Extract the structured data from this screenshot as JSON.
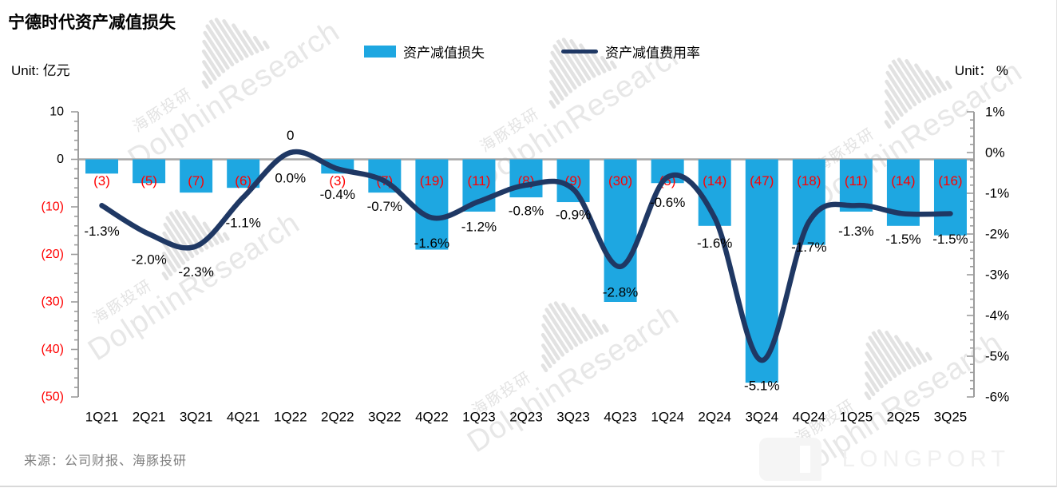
{
  "title": "宁德时代资产减值损失",
  "unit_left": "Unit: 亿元",
  "unit_right": "Unit： %",
  "legend": {
    "bar_label": "资产减值损失",
    "line_label": "资产减值费用率"
  },
  "source": "来源：公司财报、海豚投研",
  "watermark": {
    "en": "DolphinResearch",
    "cn": "海豚投研"
  },
  "footer_logo": "LONGPORT",
  "colors": {
    "bar": "#1ea7e1",
    "line": "#1f3864",
    "negative_label": "#ff0000",
    "label_text": "#000000",
    "axis_line": "#9c9c9c",
    "zero_line": "#a6a6a6"
  },
  "chart_data": {
    "type": "bar",
    "title": "宁德时代资产减值损失",
    "categories": [
      "1Q21",
      "2Q21",
      "3Q21",
      "4Q21",
      "1Q22",
      "2Q22",
      "3Q22",
      "4Q22",
      "1Q23",
      "2Q23",
      "3Q23",
      "4Q23",
      "1Q24",
      "2Q24",
      "3Q24",
      "4Q24",
      "1Q25",
      "2Q25",
      "3Q25"
    ],
    "series": [
      {
        "name": "资产减值损失",
        "type": "bar",
        "axis": "left",
        "unit": "亿元",
        "values": [
          -3,
          -5,
          -7,
          -6,
          0,
          -3,
          -7,
          -19,
          -11,
          -8,
          -9,
          -30,
          -5,
          -14,
          -47,
          -18,
          -11,
          -14,
          -16
        ],
        "labels": [
          "(3)",
          "(5)",
          "(7)",
          "(6)",
          "0",
          "(3)",
          "(7)",
          "(19)",
          "(11)",
          "(8)",
          "(9)",
          "(30)",
          "(5)",
          "(14)",
          "(47)",
          "(18)",
          "(11)",
          "(14)",
          "(16)"
        ]
      },
      {
        "name": "资产减值费用率",
        "type": "line",
        "axis": "right",
        "unit": "%",
        "values": [
          -1.3,
          -2.0,
          -2.3,
          -1.1,
          0.0,
          -0.4,
          -0.7,
          -1.6,
          -1.2,
          -0.8,
          -0.9,
          -2.8,
          -0.6,
          -1.6,
          -5.1,
          -1.7,
          -1.3,
          -1.5,
          -1.5
        ],
        "labels": [
          "-1.3%",
          "-2.0%",
          "-2.3%",
          "-1.1%",
          "0.0%",
          "-0.4%",
          "-0.7%",
          "-1.6%",
          "-1.2%",
          "-0.8%",
          "-0.9%",
          "-2.8%",
          "-0.6%",
          "-1.6%",
          "-5.1%",
          "-1.7%",
          "-1.3%",
          "-1.5%",
          "-1.5%"
        ]
      }
    ],
    "left_axis": {
      "ticks": [
        "10",
        "0",
        "(10)",
        "(20)",
        "(30)",
        "(40)",
        "(50)"
      ],
      "values": [
        10,
        0,
        -10,
        -20,
        -30,
        -40,
        -50
      ],
      "max": 10,
      "min": -50,
      "minor_step": 2
    },
    "right_axis": {
      "ticks": [
        "1%",
        "0%",
        "-1%",
        "-2%",
        "-3%",
        "-4%",
        "-5%",
        "-6%"
      ],
      "values": [
        1,
        0,
        -1,
        -2,
        -3,
        -4,
        -5,
        -6
      ],
      "max": 1,
      "min": -6,
      "minor_step": 0.2
    },
    "grid": "zero-line-only",
    "legend_position": "top-center"
  }
}
